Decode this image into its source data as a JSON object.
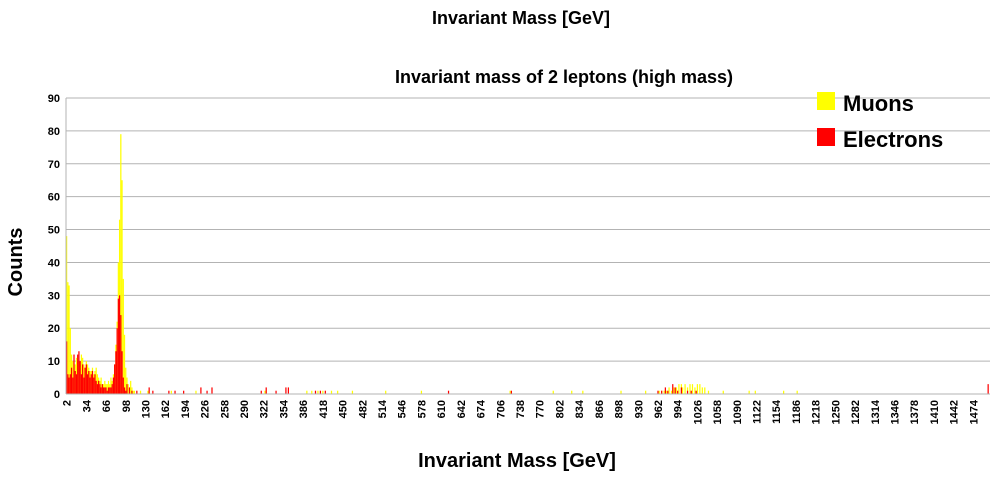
{
  "chart_data": {
    "type": "bar",
    "page_title": "Invariant Mass [GeV]",
    "title": "Invariant mass of 2 leptons (high mass)",
    "xlabel": "Invariant Mass [GeV]",
    "ylabel": "Counts",
    "ylim": [
      0,
      90
    ],
    "y_ticks": [
      0,
      10,
      20,
      30,
      40,
      50,
      60,
      70,
      80,
      90
    ],
    "x_range": [
      0,
      1500
    ],
    "x_ticks": [
      "2",
      "34",
      "66",
      "98",
      "130",
      "162",
      "194",
      "226",
      "258",
      "290",
      "322",
      "354",
      "386",
      "418",
      "450",
      "482",
      "514",
      "546",
      "578",
      "610",
      "642",
      "674",
      "706",
      "738",
      "770",
      "802",
      "834",
      "866",
      "898",
      "930",
      "962",
      "994",
      "1026",
      "1058",
      "1090",
      "1122",
      "1154",
      "1186",
      "1218",
      "1250",
      "1282",
      "1314",
      "1346",
      "1378",
      "1410",
      "1442",
      "1474"
    ],
    "grid": true,
    "legend_position": "top-right",
    "bin_width": 2,
    "series": [
      {
        "name": "Muons",
        "color": "#ffff00",
        "points": [
          [
            0,
            48
          ],
          [
            2,
            34
          ],
          [
            4,
            33
          ],
          [
            6,
            20
          ],
          [
            8,
            12
          ],
          [
            10,
            10
          ],
          [
            12,
            8
          ],
          [
            14,
            9
          ],
          [
            16,
            11
          ],
          [
            18,
            10
          ],
          [
            20,
            9
          ],
          [
            22,
            10
          ],
          [
            24,
            12
          ],
          [
            26,
            11
          ],
          [
            28,
            9
          ],
          [
            30,
            8
          ],
          [
            32,
            10
          ],
          [
            34,
            9
          ],
          [
            36,
            8
          ],
          [
            38,
            7
          ],
          [
            40,
            7
          ],
          [
            42,
            8
          ],
          [
            44,
            6
          ],
          [
            46,
            7
          ],
          [
            48,
            8
          ],
          [
            50,
            6
          ],
          [
            52,
            5
          ],
          [
            54,
            4
          ],
          [
            56,
            5
          ],
          [
            58,
            3
          ],
          [
            60,
            3
          ],
          [
            62,
            4
          ],
          [
            64,
            3
          ],
          [
            66,
            3
          ],
          [
            68,
            4
          ],
          [
            70,
            3
          ],
          [
            72,
            5
          ],
          [
            74,
            4
          ],
          [
            76,
            6
          ],
          [
            78,
            9
          ],
          [
            80,
            15
          ],
          [
            82,
            22
          ],
          [
            84,
            40
          ],
          [
            86,
            53
          ],
          [
            88,
            79
          ],
          [
            90,
            65
          ],
          [
            92,
            35
          ],
          [
            94,
            18
          ],
          [
            96,
            8
          ],
          [
            98,
            5
          ],
          [
            100,
            3
          ],
          [
            102,
            2
          ],
          [
            104,
            4
          ],
          [
            106,
            2
          ],
          [
            108,
            1
          ],
          [
            110,
            1
          ],
          [
            120,
            1
          ],
          [
            132,
            1
          ],
          [
            170,
            1
          ],
          [
            210,
            1
          ],
          [
            322,
            1
          ],
          [
            390,
            1
          ],
          [
            398,
            1
          ],
          [
            408,
            1
          ],
          [
            416,
            1
          ],
          [
            430,
            1
          ],
          [
            440,
            1
          ],
          [
            464,
            1
          ],
          [
            518,
            1
          ],
          [
            576,
            1
          ],
          [
            720,
            1
          ],
          [
            790,
            1
          ],
          [
            820,
            1
          ],
          [
            838,
            1
          ],
          [
            900,
            1
          ],
          [
            940,
            1
          ],
          [
            962,
            1
          ],
          [
            966,
            1
          ],
          [
            970,
            1
          ],
          [
            974,
            1
          ],
          [
            978,
            2
          ],
          [
            982,
            1
          ],
          [
            986,
            2
          ],
          [
            990,
            2
          ],
          [
            994,
            3
          ],
          [
            998,
            3
          ],
          [
            1000,
            2
          ],
          [
            1004,
            3
          ],
          [
            1008,
            2
          ],
          [
            1012,
            3
          ],
          [
            1016,
            3
          ],
          [
            1020,
            2
          ],
          [
            1024,
            3
          ],
          [
            1028,
            3
          ],
          [
            1032,
            2
          ],
          [
            1036,
            2
          ],
          [
            1042,
            1
          ],
          [
            1066,
            1
          ],
          [
            1108,
            1
          ],
          [
            1118,
            1
          ],
          [
            1164,
            1
          ],
          [
            1186,
            1
          ]
        ]
      },
      {
        "name": "Electrons",
        "color": "#ff0000",
        "points": [
          [
            0,
            16
          ],
          [
            2,
            6
          ],
          [
            4,
            5
          ],
          [
            6,
            6
          ],
          [
            8,
            8
          ],
          [
            10,
            5
          ],
          [
            12,
            12
          ],
          [
            14,
            7
          ],
          [
            16,
            6
          ],
          [
            18,
            12
          ],
          [
            20,
            13
          ],
          [
            22,
            10
          ],
          [
            24,
            6
          ],
          [
            26,
            9
          ],
          [
            28,
            5
          ],
          [
            30,
            8
          ],
          [
            32,
            9
          ],
          [
            34,
            6
          ],
          [
            36,
            7
          ],
          [
            38,
            5
          ],
          [
            40,
            6
          ],
          [
            42,
            7
          ],
          [
            44,
            5
          ],
          [
            46,
            6
          ],
          [
            48,
            4
          ],
          [
            50,
            3
          ],
          [
            52,
            4
          ],
          [
            54,
            3
          ],
          [
            56,
            2
          ],
          [
            58,
            3
          ],
          [
            60,
            2
          ],
          [
            62,
            2
          ],
          [
            64,
            2
          ],
          [
            66,
            1
          ],
          [
            68,
            2
          ],
          [
            70,
            2
          ],
          [
            72,
            2
          ],
          [
            74,
            3
          ],
          [
            76,
            5
          ],
          [
            78,
            9
          ],
          [
            80,
            13
          ],
          [
            82,
            20
          ],
          [
            84,
            29
          ],
          [
            86,
            30
          ],
          [
            88,
            24
          ],
          [
            90,
            13
          ],
          [
            92,
            5
          ],
          [
            94,
            2
          ],
          [
            96,
            1
          ],
          [
            98,
            3
          ],
          [
            102,
            2
          ],
          [
            106,
            1
          ],
          [
            114,
            1
          ],
          [
            134,
            2
          ],
          [
            140,
            1
          ],
          [
            166,
            1
          ],
          [
            176,
            1
          ],
          [
            190,
            1
          ],
          [
            218,
            2
          ],
          [
            228,
            1
          ],
          [
            236,
            2
          ],
          [
            316,
            1
          ],
          [
            324,
            2
          ],
          [
            340,
            1
          ],
          [
            356,
            2
          ],
          [
            360,
            2
          ],
          [
            404,
            1
          ],
          [
            412,
            1
          ],
          [
            420,
            1
          ],
          [
            620,
            1
          ],
          [
            722,
            1
          ],
          [
            960,
            1
          ],
          [
            966,
            1
          ],
          [
            972,
            2
          ],
          [
            976,
            1
          ],
          [
            984,
            3
          ],
          [
            988,
            2
          ],
          [
            992,
            1
          ],
          [
            998,
            2
          ],
          [
            1008,
            1
          ],
          [
            1014,
            1
          ],
          [
            1022,
            1
          ],
          [
            1496,
            3
          ]
        ]
      }
    ]
  }
}
